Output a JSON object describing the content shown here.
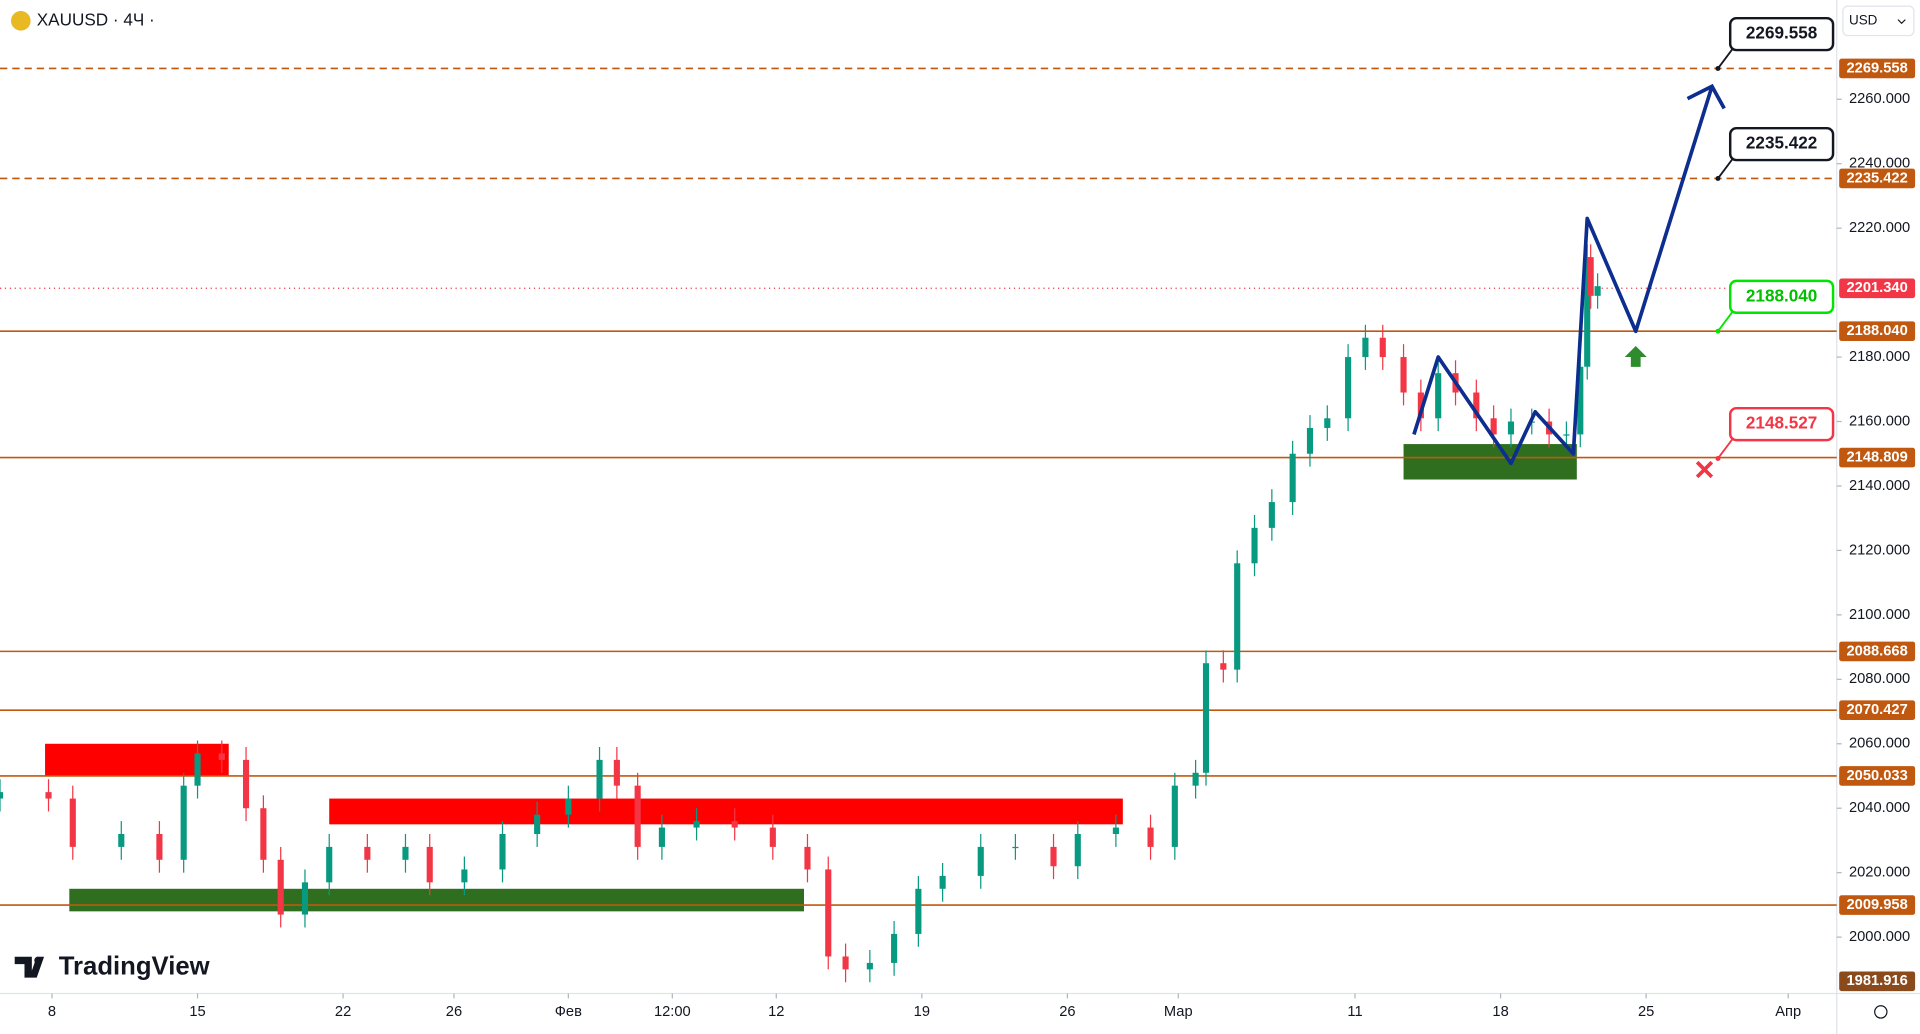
{
  "header": {
    "symbol": "XAUUSD · 4Ч ·",
    "currency": "USD",
    "brand": "TradingView"
  },
  "chart_data": {
    "type": "candlestick",
    "x": [
      0,
      14,
      21,
      35,
      46,
      53,
      57,
      64,
      71,
      76,
      81,
      88,
      95,
      106,
      117,
      124,
      134,
      145,
      155,
      164,
      173,
      178,
      184,
      191,
      201,
      212,
      223,
      233,
      239,
      244,
      251,
      258,
      265,
      272,
      283,
      293,
      304,
      311,
      322,
      332,
      339,
      345,
      348,
      353,
      357,
      362,
      367,
      373,
      378,
      383,
      389,
      394,
      399,
      405,
      410,
      415,
      420,
      426,
      431,
      436,
      442,
      447,
      452,
      456,
      458,
      459,
      461
    ],
    "open": [
      2043,
      2045,
      2043,
      2028,
      2032,
      2024,
      2047,
      2057,
      2055,
      2040,
      2024,
      2007,
      2017,
      2028,
      2024,
      2028,
      2017,
      2021,
      2032,
      2038,
      2043,
      2055,
      2047,
      2028,
      2034,
      2036,
      2034,
      2028,
      2021,
      1994,
      1990,
      1992,
      2001,
      2015,
      2019,
      2028,
      2028,
      2022,
      2032,
      2034,
      2028,
      2047,
      2051,
      2085,
      2083,
      2116,
      2127,
      2135,
      2150,
      2158,
      2161,
      2180,
      2186,
      2180,
      2169,
      2161,
      2175,
      2169,
      2161,
      2156,
      2160,
      2160,
      2156,
      2156,
      2177,
      2211,
      2199
    ],
    "high": [
      2049,
      2049,
      2047,
      2036,
      2036,
      2051,
      2061,
      2061,
      2059,
      2044,
      2028,
      2021,
      2032,
      2032,
      2032,
      2032,
      2025,
      2036,
      2042,
      2047,
      2059,
      2059,
      2051,
      2038,
      2040,
      2040,
      2038,
      2032,
      2025,
      1998,
      1996,
      2005,
      2019,
      2023,
      2032,
      2032,
      2032,
      2036,
      2038,
      2038,
      2051,
      2055,
      2089,
      2089,
      2120,
      2131,
      2139,
      2154,
      2162,
      2165,
      2184,
      2190,
      2190,
      2184,
      2173,
      2179,
      2179,
      2173,
      2165,
      2164,
      2164,
      2164,
      2160,
      2181,
      2215,
      2215,
      2206
    ],
    "low": [
      2039,
      2039,
      2024,
      2024,
      2020,
      2020,
      2043,
      2051,
      2036,
      2020,
      2003,
      2003,
      2013,
      2020,
      2020,
      2013,
      2013,
      2017,
      2028,
      2034,
      2039,
      2043,
      2024,
      2024,
      2030,
      2030,
      2024,
      2017,
      1990,
      1986,
      1986,
      1988,
      1997,
      2011,
      2015,
      2024,
      2018,
      2018,
      2028,
      2024,
      2024,
      2043,
      2047,
      2079,
      2079,
      2112,
      2123,
      2131,
      2146,
      2154,
      2157,
      2176,
      2176,
      2165,
      2157,
      2157,
      2165,
      2157,
      2152,
      2152,
      2156,
      2152,
      2152,
      2152,
      2173,
      2195,
      2195
    ],
    "close": [
      2045,
      2043,
      2028,
      2032,
      2024,
      2047,
      2057,
      2055,
      2040,
      2024,
      2007,
      2017,
      2028,
      2024,
      2028,
      2017,
      2021,
      2032,
      2038,
      2043,
      2055,
      2047,
      2028,
      2034,
      2036,
      2034,
      2028,
      2021,
      1994,
      1990,
      1992,
      2001,
      2015,
      2019,
      2028,
      2028,
      2022,
      2032,
      2034,
      2028,
      2047,
      2051,
      2085,
      2083,
      2116,
      2127,
      2135,
      2150,
      2158,
      2161,
      2180,
      2186,
      2180,
      2169,
      2161,
      2175,
      2169,
      2161,
      2156,
      2160,
      2160,
      2156,
      2156,
      2177,
      2211,
      2199,
      2202
    ],
    "up_color": "#089981",
    "down_color": "#f23645",
    "xlim": [
      0,
      530
    ],
    "ylim": [
      1982.5,
      2290.8
    ],
    "xticks": [
      {
        "value": 15,
        "label": "8"
      },
      {
        "value": 57,
        "label": "15"
      },
      {
        "value": 99,
        "label": "22"
      },
      {
        "value": 131,
        "label": "26"
      },
      {
        "value": 164,
        "label": "Фев"
      },
      {
        "value": 194,
        "label": "12:00"
      },
      {
        "value": 224,
        "label": "12"
      },
      {
        "value": 266,
        "label": "19"
      },
      {
        "value": 308,
        "label": "26"
      },
      {
        "value": 340,
        "label": "Мар"
      },
      {
        "value": 391,
        "label": "11"
      },
      {
        "value": 433,
        "label": "18"
      },
      {
        "value": 475,
        "label": "25"
      },
      {
        "value": 516,
        "label": "Апр"
      }
    ],
    "yticks": [
      {
        "value": 2000,
        "label": "2000.000"
      },
      {
        "value": 2020,
        "label": "2020.000"
      },
      {
        "value": 2040,
        "label": "2040.000"
      },
      {
        "value": 2060,
        "label": "2060.000"
      },
      {
        "value": 2080,
        "label": "2080.000"
      },
      {
        "value": 2100,
        "label": "2100.000"
      },
      {
        "value": 2120,
        "label": "2120.000"
      },
      {
        "value": 2140,
        "label": "2140.000"
      },
      {
        "value": 2160,
        "label": "2160.000"
      },
      {
        "value": 2180,
        "label": "2180.000"
      },
      {
        "value": 2220,
        "label": "2220.000"
      },
      {
        "value": 2240,
        "label": "2240.000"
      },
      {
        "value": 2260,
        "label": "2260.000"
      }
    ],
    "levels": [
      {
        "value": 2269.558,
        "label": "2269.558",
        "style": "dashed",
        "color": "#c0580f"
      },
      {
        "value": 2235.422,
        "label": "2235.422",
        "style": "dashed",
        "color": "#c0580f"
      },
      {
        "value": 2201.34,
        "label": "2201.340",
        "style": "dotted",
        "color": "#f23645"
      },
      {
        "value": 2188.04,
        "label": "2188.040",
        "style": "solid",
        "color": "#c0580f"
      },
      {
        "value": 2148.809,
        "label": "2148.809",
        "style": "solid",
        "color": "#c0580f"
      },
      {
        "value": 2088.668,
        "label": "2088.668",
        "style": "solid",
        "color": "#c0580f"
      },
      {
        "value": 2070.427,
        "label": "2070.427",
        "style": "solid",
        "color": "#c0580f"
      },
      {
        "value": 2050.033,
        "label": "2050.033",
        "style": "solid",
        "color": "#c0580f"
      },
      {
        "value": 2009.958,
        "label": "2009.958",
        "style": "solid",
        "color": "#c0580f"
      },
      {
        "value": 1981.916,
        "label": "1981.916",
        "style": "none",
        "color": "#8a4a1c"
      }
    ],
    "zones": [
      {
        "color": "#ff0000",
        "x": [
          13,
          66
        ],
        "y": [
          2050,
          2060
        ]
      },
      {
        "color": "#2f6e1e",
        "x": [
          20,
          232
        ],
        "y": [
          2008,
          2015
        ]
      },
      {
        "color": "#ff0000",
        "x": [
          95,
          324
        ],
        "y": [
          2035,
          2043
        ]
      },
      {
        "color": "#2f6e1e",
        "x": [
          405,
          455
        ],
        "y": [
          2142,
          2153
        ]
      }
    ],
    "projection": {
      "color": "#0d2e8f",
      "x": [
        408,
        415,
        436,
        443,
        454,
        458,
        472,
        494
      ],
      "values": [
        2156,
        2180,
        2147,
        2163,
        2150,
        2223,
        2188,
        2264
      ]
    },
    "callouts": [
      {
        "value": 2269.558,
        "label": "2269.558",
        "color": "#131722"
      },
      {
        "value": 2235.422,
        "label": "2235.422",
        "color": "#131722"
      },
      {
        "value": 2188.04,
        "label": "2188.040",
        "color": "#00e600"
      },
      {
        "value": 2148.527,
        "label": "2148.527",
        "color": "#f23645"
      }
    ]
  }
}
